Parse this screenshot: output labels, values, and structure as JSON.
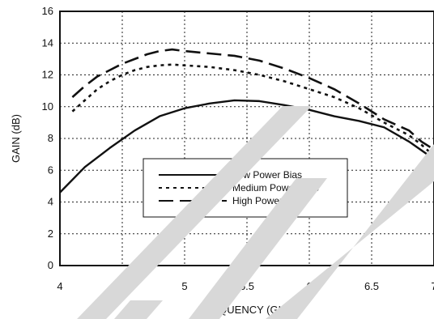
{
  "chart_data": {
    "type": "line",
    "title": "",
    "xlabel": "FREQUENCY (GHz)",
    "ylabel": "GAIN (dB)",
    "xlim": [
      4,
      7
    ],
    "ylim": [
      0,
      16
    ],
    "x_ticks": [
      4,
      4.5,
      5,
      5.5,
      6,
      6.5,
      7
    ],
    "x_tick_labels": [
      "4",
      "4.5",
      "5",
      "5.5",
      "6",
      "6.5",
      "7"
    ],
    "y_ticks": [
      0,
      2,
      4,
      6,
      8,
      10,
      12,
      14,
      16
    ],
    "y_tick_labels": [
      "0",
      "2",
      "4",
      "6",
      "8",
      "10",
      "12",
      "14",
      "16"
    ],
    "grid": true,
    "legend_position": "center",
    "series": [
      {
        "name": "Low Power Bias",
        "style": "solid",
        "color": "#111111",
        "x": [
          4.0,
          4.2,
          4.4,
          4.6,
          4.8,
          5.0,
          5.2,
          5.4,
          5.6,
          5.8,
          6.0,
          6.2,
          6.4,
          6.6,
          6.8,
          7.0
        ],
        "y": [
          4.6,
          6.2,
          7.4,
          8.5,
          9.4,
          9.9,
          10.2,
          10.4,
          10.35,
          10.1,
          9.8,
          9.4,
          9.1,
          8.7,
          7.8,
          6.7
        ]
      },
      {
        "name": "Medium Power Bias",
        "style": "dotted",
        "color": "#111111",
        "x": [
          4.1,
          4.2,
          4.3,
          4.4,
          4.5,
          4.6,
          4.7,
          4.8,
          4.9,
          5.0,
          5.2,
          5.4,
          5.6,
          5.8,
          6.0,
          6.2,
          6.4,
          6.6,
          6.8,
          6.9,
          7.0
        ],
        "y": [
          9.7,
          10.4,
          11.1,
          11.6,
          12.0,
          12.3,
          12.5,
          12.6,
          12.65,
          12.6,
          12.5,
          12.3,
          12.0,
          11.6,
          11.1,
          10.6,
          9.9,
          9.0,
          8.2,
          7.6,
          6.9
        ]
      },
      {
        "name": "High Power Bias",
        "style": "dashed",
        "color": "#111111",
        "x": [
          4.1,
          4.2,
          4.3,
          4.4,
          4.5,
          4.6,
          4.7,
          4.8,
          4.9,
          5.0,
          5.2,
          5.4,
          5.6,
          5.8,
          6.0,
          6.2,
          6.4,
          6.6,
          6.8,
          6.9,
          7.0
        ],
        "y": [
          10.6,
          11.3,
          11.9,
          12.3,
          12.7,
          13.0,
          13.3,
          13.5,
          13.6,
          13.5,
          13.35,
          13.2,
          12.9,
          12.4,
          11.8,
          11.1,
          10.2,
          9.2,
          8.5,
          7.8,
          7.3
        ]
      }
    ]
  }
}
